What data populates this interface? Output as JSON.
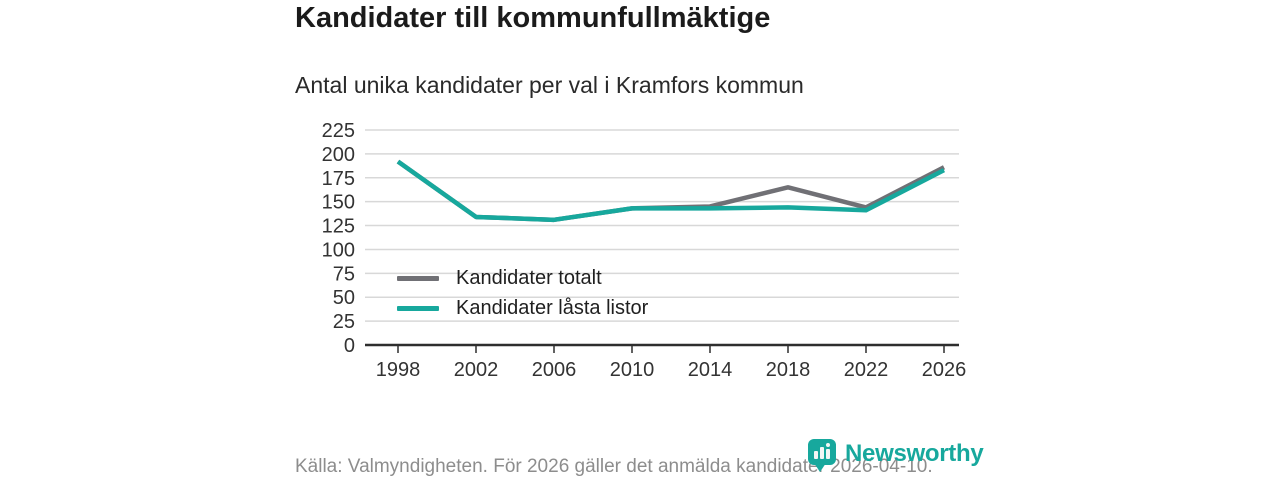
{
  "header": {
    "title": "Kandidater till kommunfullmäktige",
    "subtitle": "Antal unika kandidater per val i Kramfors kommun"
  },
  "chart_data": {
    "type": "line",
    "title": "Kandidater till kommunfullmäktige",
    "subtitle": "Antal unika kandidater per val i Kramfors kommun",
    "categories": [
      "1998",
      "2002",
      "2006",
      "2010",
      "2014",
      "2018",
      "2022",
      "2026"
    ],
    "series": [
      {
        "name": "Kandidater totalt",
        "color": "#707075",
        "values": [
          192,
          134,
          131,
          143,
          145,
          165,
          144,
          186
        ]
      },
      {
        "name": "Kandidater låsta listor",
        "color": "#17a89d",
        "values": [
          192,
          134,
          131,
          143,
          143,
          144,
          141,
          183
        ]
      }
    ],
    "xlabel": "",
    "ylabel": "",
    "ylim": [
      0,
      225
    ],
    "ytick_step": 25,
    "grid": "horizontal-only",
    "gridline_color": "#d8d8d8",
    "axis_color": "#2e2e2e",
    "tick_label_color": "#333333",
    "legend_position": "inside-lower-left",
    "line_width": 4.5
  },
  "footer": {
    "source": "Källa: Valmyndigheten. För 2026 gäller det anmälda kandidater 2026-04-10.",
    "brand": "Newsworthy",
    "brand_color": "#17a89d"
  }
}
